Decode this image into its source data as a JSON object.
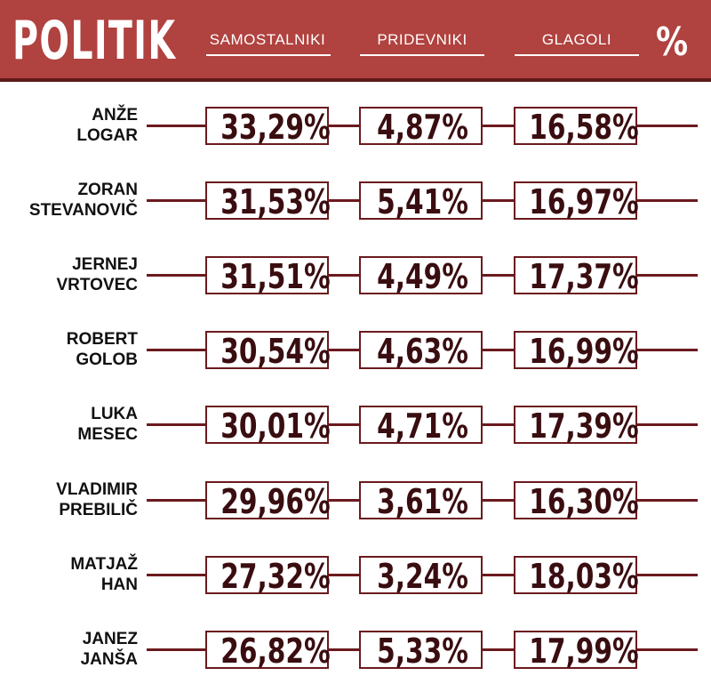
{
  "brand": "POLITIK",
  "percent_symbol": "%",
  "colors": {
    "header": "#b0423f",
    "accent": "#6b1a1e",
    "value_text": "#3a0d10"
  },
  "chart_data": {
    "type": "table",
    "columns": [
      "SAMOSTALNIKI",
      "PRIDEVNIKI",
      "GLAGOLI"
    ],
    "rows": [
      {
        "name_line1": "ANŽE",
        "name_line2": "LOGAR",
        "values": [
          "33,29%",
          "4,87%",
          "16,58%"
        ]
      },
      {
        "name_line1": "ZORAN",
        "name_line2": "STEVANOVIČ",
        "values": [
          "31,53%",
          "5,41%",
          "16,97%"
        ]
      },
      {
        "name_line1": "JERNEJ",
        "name_line2": "VRTOVEC",
        "values": [
          "31,51%",
          "4,49%",
          "17,37%"
        ]
      },
      {
        "name_line1": "ROBERT",
        "name_line2": "GOLOB",
        "values": [
          "30,54%",
          "4,63%",
          "16,99%"
        ]
      },
      {
        "name_line1": "LUKA",
        "name_line2": "MESEC",
        "values": [
          "30,01%",
          "4,71%",
          "17,39%"
        ]
      },
      {
        "name_line1": "VLADIMIR",
        "name_line2": "PREBILIČ",
        "values": [
          "29,96%",
          "3,61%",
          "16,30%"
        ]
      },
      {
        "name_line1": "MATJAŽ",
        "name_line2": "HAN",
        "values": [
          "27,32%",
          "3,24%",
          "18,03%"
        ]
      },
      {
        "name_line1": "JANEZ",
        "name_line2": "JANŠA",
        "values": [
          "26,82%",
          "5,33%",
          "17,99%"
        ]
      }
    ]
  }
}
